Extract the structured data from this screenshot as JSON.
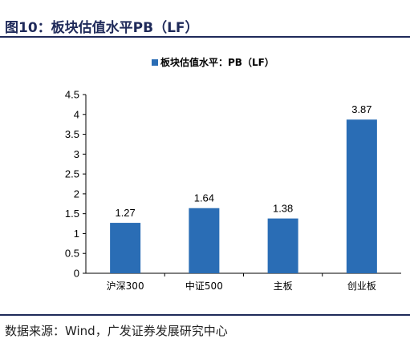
{
  "figure": {
    "title": "图10：板块估值水平PB（LF）",
    "source": "数据来源：Wind，广发证券发展研究中心"
  },
  "chart_data": {
    "type": "bar",
    "categories": [
      "沪深300",
      "中证500",
      "主板",
      "创业板"
    ],
    "series": [
      {
        "name": "板块估值水平：PB（LF）",
        "values": [
          1.27,
          1.64,
          1.38,
          3.87
        ]
      }
    ],
    "yticks": [
      "0",
      "0.5",
      "1",
      "1.5",
      "2",
      "2.5",
      "3",
      "3.5",
      "4",
      "4.5"
    ],
    "ylim": [
      0,
      4.5
    ],
    "grid": false,
    "legend_position": "top-center",
    "bar_color": "#2a6db5",
    "data_labels": [
      "1.27",
      "1.64",
      "1.38",
      "3.87"
    ]
  }
}
